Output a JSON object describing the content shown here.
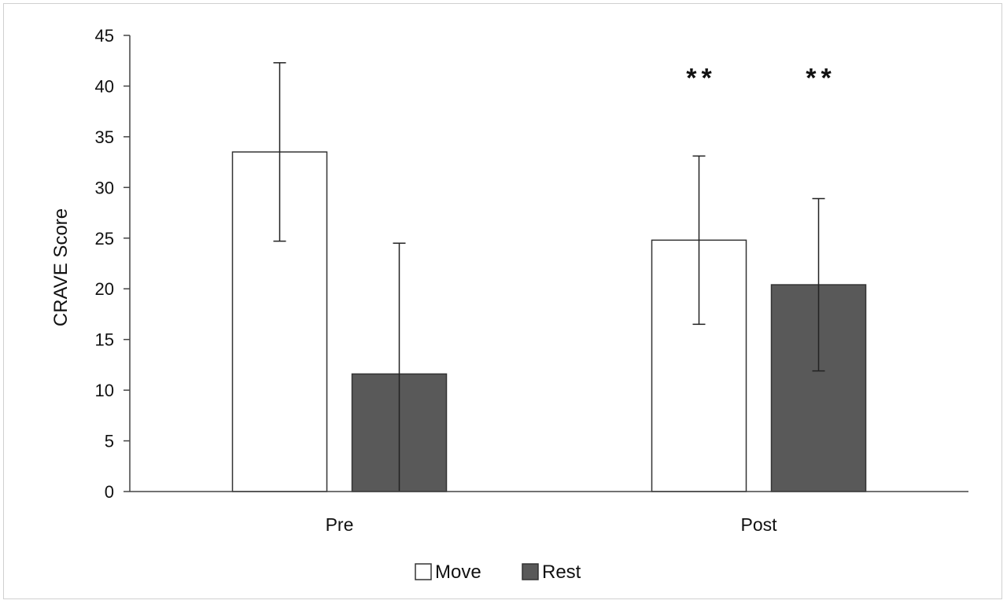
{
  "chart_data": {
    "type": "bar",
    "title": "",
    "xlabel": "",
    "ylabel": "CRAVE Score",
    "ylim": [
      0,
      45
    ],
    "yticks": [
      0,
      5,
      10,
      15,
      20,
      25,
      30,
      35,
      40,
      45
    ],
    "categories": [
      "Pre",
      "Post"
    ],
    "series": [
      {
        "name": "Move",
        "color": "#ffffff",
        "values": [
          33.5,
          24.8
        ],
        "error": [
          8.8,
          8.3
        ]
      },
      {
        "name": "Rest",
        "color": "#595959",
        "values": [
          11.6,
          20.4
        ],
        "error": [
          12.9,
          8.5
        ]
      }
    ],
    "annotations": [
      {
        "category": "Post",
        "series": "Move",
        "text": "**",
        "y": 41
      },
      {
        "category": "Post",
        "series": "Rest",
        "text": "**",
        "y": 41
      }
    ],
    "grid": false,
    "legend_position": "bottom-center"
  }
}
